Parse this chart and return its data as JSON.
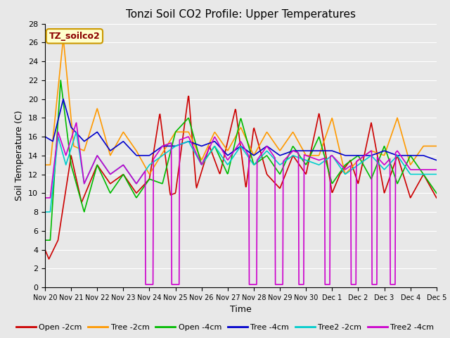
{
  "title": "Tonzi Soil CO2 Profile: Upper Temperatures",
  "xlabel": "Time",
  "ylabel": "Soil Temperature (C)",
  "ylim": [
    0,
    28
  ],
  "yticks": [
    0,
    2,
    4,
    6,
    8,
    10,
    12,
    14,
    16,
    18,
    20,
    22,
    24,
    26,
    28
  ],
  "xtick_labels": [
    "Nov 20",
    "Nov 21",
    "Nov 22",
    "Nov 23",
    "Nov 24",
    "Nov 25",
    "Nov 26",
    "Nov 27",
    "Nov 28",
    "Nov 29",
    "Nov 30",
    "Dec 1",
    "Dec 2",
    "Dec 3",
    "Dec 4",
    "Dec 5"
  ],
  "annotation_text": "TZ_soilco2",
  "annotation_color": "#8b0000",
  "annotation_bg": "#ffffcc",
  "annotation_border": "#cc9900",
  "fig_bg": "#e8e8e8",
  "plot_bg": "#e8e8e8",
  "legend_entries": [
    "Open -2cm",
    "Tree -2cm",
    "Open -4cm",
    "Tree -4cm",
    "Tree2 -2cm",
    "Tree2 -4cm"
  ],
  "line_colors": [
    "#cc0000",
    "#ff9900",
    "#00bb00",
    "#0000cc",
    "#00cccc",
    "#cc00cc"
  ],
  "line_width": 1.2,
  "grid_color": "#ffffff",
  "total_days": 15,
  "num_points": 900
}
